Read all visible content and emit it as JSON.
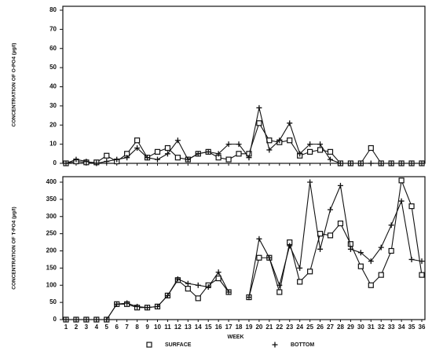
{
  "chart_data": [
    {
      "type": "line",
      "y_label": "CONCENTRATION OF O-PO4 (µg/l)",
      "x": [
        1,
        2,
        3,
        4,
        5,
        6,
        7,
        8,
        9,
        10,
        11,
        12,
        13,
        14,
        15,
        16,
        17,
        18,
        19,
        20,
        21,
        22,
        23,
        24,
        25,
        26,
        27,
        28,
        29,
        30,
        31,
        32,
        33,
        34,
        35,
        36
      ],
      "xlim": [
        1,
        36
      ],
      "ylim": [
        0,
        80
      ],
      "yticks": [
        0,
        10,
        20,
        30,
        40,
        50,
        60,
        70,
        80
      ],
      "series": [
        {
          "color": "#111111",
          "marker": "square",
          "values": [
            0,
            1,
            0.5,
            0.5,
            4,
            1,
            5,
            12,
            3,
            6,
            8,
            3,
            2,
            5,
            6,
            3,
            2,
            5,
            5,
            21,
            12,
            11,
            12,
            4,
            6,
            7,
            6,
            0,
            0,
            0,
            8,
            0,
            0,
            0,
            0,
            0
          ]
        },
        {
          "color": "#111111",
          "marker": "plus",
          "values": [
            0,
            2,
            1,
            0,
            1,
            2,
            3,
            8,
            3,
            2,
            5,
            12,
            2,
            5,
            6,
            5,
            10,
            10,
            3,
            29,
            7,
            12,
            21,
            5,
            10,
            10,
            2,
            0,
            0,
            0,
            0,
            0,
            0,
            0,
            0,
            0
          ]
        }
      ]
    },
    {
      "type": "line",
      "y_label": "CONCENTRATION OF T-PO4 (µg/l)",
      "x_label": "WEEK",
      "x": [
        1,
        2,
        3,
        4,
        5,
        6,
        7,
        8,
        9,
        10,
        11,
        12,
        13,
        14,
        15,
        16,
        17,
        18,
        19,
        20,
        21,
        22,
        23,
        24,
        25,
        26,
        27,
        28,
        29,
        30,
        31,
        32,
        33,
        34,
        35,
        36
      ],
      "xlim": [
        1,
        36
      ],
      "xticks": [
        1,
        2,
        3,
        4,
        5,
        6,
        7,
        8,
        9,
        10,
        11,
        12,
        13,
        14,
        15,
        16,
        17,
        18,
        19,
        20,
        21,
        22,
        23,
        24,
        25,
        26,
        27,
        28,
        29,
        30,
        31,
        32,
        33,
        34,
        35,
        36
      ],
      "ylim": [
        0,
        400
      ],
      "yticks": [
        0,
        50,
        100,
        150,
        200,
        250,
        300,
        350,
        400
      ],
      "series": [
        {
          "name": "SURFACE",
          "color": "#111111",
          "marker": "square",
          "values": [
            0,
            0,
            0,
            0,
            0,
            45,
            45,
            35,
            35,
            38,
            70,
            115,
            90,
            62,
            100,
            120,
            80,
            null,
            65,
            180,
            180,
            80,
            225,
            110,
            140,
            250,
            245,
            280,
            220,
            155,
            100,
            130,
            200,
            405,
            330,
            130
          ]
        },
        {
          "name": "BOTTOM",
          "color": "#111111",
          "marker": "plus",
          "values": [
            0,
            0,
            0,
            0,
            0,
            45,
            48,
            38,
            35,
            38,
            70,
            118,
            105,
            100,
            95,
            138,
            80,
            null,
            65,
            235,
            180,
            100,
            215,
            150,
            400,
            205,
            320,
            390,
            205,
            195,
            170,
            210,
            275,
            345,
            175,
            170
          ]
        }
      ]
    }
  ]
}
